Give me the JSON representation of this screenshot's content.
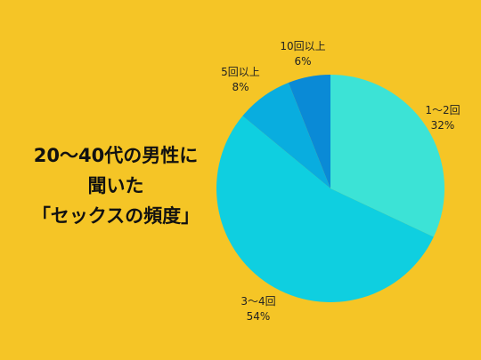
{
  "title_lines": [
    "20〜40代の男性に",
    "聞いた",
    "「セックスの頻度」"
  ],
  "colors": {
    "background": "#F5C526",
    "slices": [
      "#3CE3D6",
      "#0FCFE0",
      "#09ADDF",
      "#0A8AD6"
    ]
  },
  "chart_data": {
    "type": "pie",
    "start": "12 o'clock",
    "direction": "clockwise",
    "slices": [
      {
        "label": "1〜2回",
        "value": 32,
        "value_label": "32%"
      },
      {
        "label": "3〜4回",
        "value": 54,
        "value_label": "54%"
      },
      {
        "label": "5回以上",
        "value": 8,
        "value_label": "8%"
      },
      {
        "label": "10回以上",
        "value": 6,
        "value_label": "6%"
      }
    ]
  }
}
